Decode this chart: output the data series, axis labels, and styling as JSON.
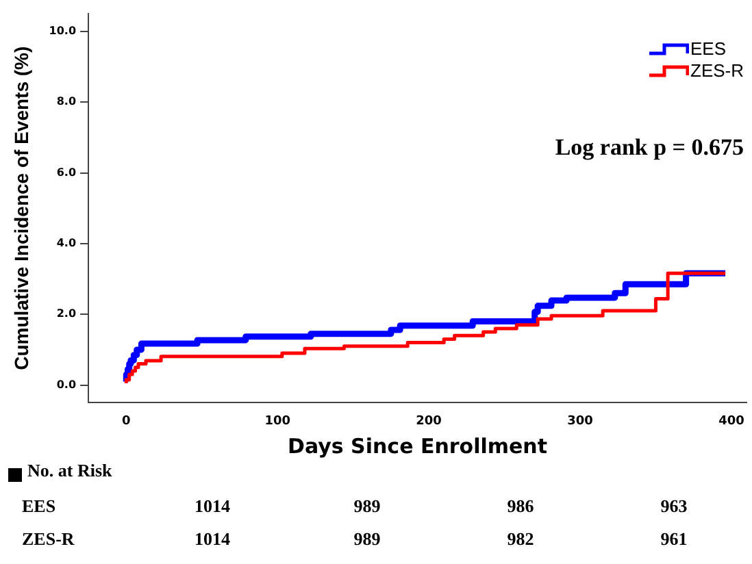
{
  "chart_data": {
    "type": "step",
    "xlabel": "Days Since Enrollment",
    "ylabel": "Cumulative Incidence of Events (%)",
    "xlim": [
      -25,
      410
    ],
    "xticks": [
      0,
      100,
      200,
      300,
      400
    ],
    "ylim": [
      -0.5,
      10.5
    ],
    "yticks": [
      {
        "value": 0,
        "label": "0.0"
      },
      {
        "value": 2,
        "label": "2.0"
      },
      {
        "value": 4,
        "label": "4.0"
      },
      {
        "value": 6,
        "label": "6.0"
      },
      {
        "value": 8,
        "label": "8.0"
      },
      {
        "value": 10,
        "label": "10.0"
      }
    ],
    "grid": false,
    "legend": "top right",
    "marker": "none",
    "line_style": "solid",
    "series": [
      {
        "name": "EES",
        "color": "#0000ff",
        "x": [
          0,
          1,
          2,
          3,
          5,
          7,
          10,
          47,
          79,
          122,
          175,
          181,
          229,
          270,
          272,
          281,
          291,
          323,
          330,
          370,
          378,
          396
        ],
        "values": [
          0.1,
          0.3,
          0.45,
          0.6,
          0.7,
          0.85,
          1.0,
          1.17,
          1.27,
          1.37,
          1.45,
          1.56,
          1.68,
          1.8,
          2.07,
          2.24,
          2.39,
          2.47,
          2.6,
          2.85,
          3.16,
          3.16
        ]
      },
      {
        "name": "ZES-R",
        "color": "#ff0000",
        "x": [
          0,
          2,
          4,
          6,
          8,
          13,
          23,
          103,
          118,
          144,
          186,
          210,
          217,
          236,
          244,
          258,
          272,
          281,
          315,
          350,
          358,
          383,
          396
        ],
        "values": [
          0.05,
          0.15,
          0.3,
          0.4,
          0.5,
          0.6,
          0.69,
          0.81,
          0.9,
          1.03,
          1.1,
          1.2,
          1.3,
          1.4,
          1.5,
          1.6,
          1.7,
          1.87,
          1.96,
          2.1,
          2.44,
          3.16,
          3.16
        ]
      }
    ],
    "annotations": [
      "Log rank p = 0.675",
      "No. at Risk",
      "EES",
      "1014",
      "989",
      "986",
      "963",
      "ZES-R",
      "1014",
      "989",
      "982",
      "961"
    ]
  }
}
